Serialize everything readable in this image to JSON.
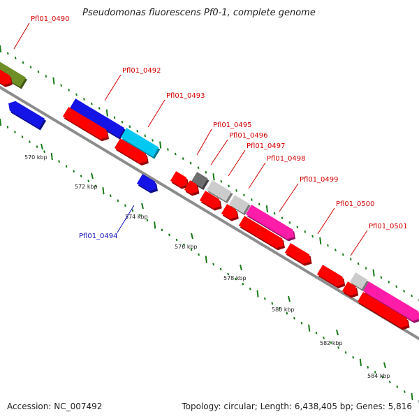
{
  "title": "Pseudomonas fluorescens Pf0-1, complete genome",
  "footer": {
    "accession": "Accession: NC_007492",
    "info": "Topology: circular; Length: 6,438,405 bp; Genes: 5,816"
  },
  "colors": {
    "backbone": "#8c8c8c",
    "tick": "#1a7a1a",
    "label_forward": "#d40000",
    "label_reverse": "#1010c0",
    "cds_red": "#ff0000",
    "blue": "#1414e6",
    "cyan": "#00c8f0",
    "olive": "#6e8f25",
    "gray_dark": "#6e6e6e",
    "gray_light": "#cccccc",
    "magenta": "#ff1ca8"
  },
  "scale": {
    "tick_labels": [
      "570 kbp",
      "572 kbp",
      "574 kbp",
      "576 kbp",
      "578 kbp",
      "580 kbp",
      "582 kbp",
      "584 kbp"
    ]
  },
  "genes": [
    {
      "label": "Pfl01_0490",
      "color": "olive",
      "label_color": "label_forward"
    },
    {
      "label": "Pfl01_0492",
      "color": "blue",
      "label_color": "label_forward"
    },
    {
      "label": "Pfl01_0493",
      "color": "cyan",
      "label_color": "label_forward"
    },
    {
      "label": "Pfl01_0494",
      "color": "blue",
      "label_color": "label_reverse"
    },
    {
      "label": "Pfl01_0495",
      "color": "gray_dark",
      "label_color": "label_forward"
    },
    {
      "label": "Pfl01_0496",
      "color": "gray_light",
      "label_color": "label_forward"
    },
    {
      "label": "Pfl01_0497",
      "color": "gray_light",
      "label_color": "label_forward"
    },
    {
      "label": "Pfl01_0498",
      "color": "magenta",
      "label_color": "label_forward"
    },
    {
      "label": "Pfl01_0499",
      "color": "label_forward_none",
      "label_color": "label_forward"
    },
    {
      "label": "Pfl01_0500",
      "color": "label_forward_none",
      "label_color": "label_forward"
    },
    {
      "label": "Pfl01_0501",
      "color": "magenta",
      "label_color": "label_forward"
    }
  ]
}
